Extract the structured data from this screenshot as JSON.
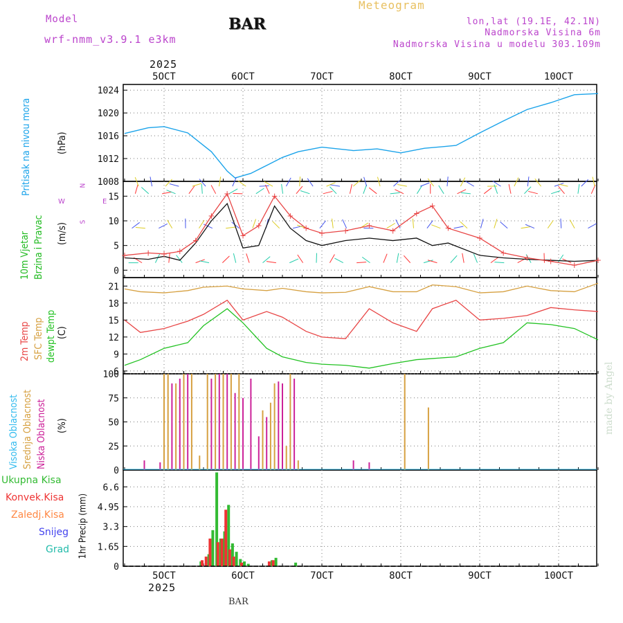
{
  "header": {
    "title": "Meteogram",
    "model_label": "Model",
    "model_name": "wrf-nmm_v3.9.1 e3km",
    "station": "BAR",
    "lonlat": "lon,lat (19.1E, 42.1N)",
    "altitude": "Nadmorska Visina 6m",
    "model_altitude": "Nadmorska Visina u modelu 303.109m",
    "watermark": "made by Angel",
    "footer_station": "BAR"
  },
  "colors": {
    "pressure": "#1aa3ea",
    "temp2m": "#e84545",
    "sfc": "#d6a040",
    "dewpt": "#22c222",
    "high_cloud": "#33bbee",
    "mid_cloud": "#d6a040",
    "low_cloud": "#cc2299",
    "total_precip": "#33bb33",
    "conv_precip": "#ee3333",
    "frozen": "#ff8844",
    "snow": "#4444ee",
    "hail": "#22bbaa",
    "wind_speed_label": "#22bb22",
    "direction_label": "#bb44cc"
  },
  "chart_data": [
    {
      "type": "line",
      "panel": "pressure",
      "ylabel": "Pritisak na nivou mora",
      "unit": "(hPa)",
      "ylim": [
        1008,
        1025
      ],
      "yticks": [
        "1008",
        "1012",
        "1016",
        "1020",
        "1024"
      ],
      "x_top_ticks": [
        "5OCT",
        "6OCT",
        "7OCT",
        "8OCT",
        "9OCT",
        "10OCT"
      ],
      "x_top_year": "2025",
      "x": [
        4.5,
        4.8,
        5.0,
        5.3,
        5.6,
        5.8,
        5.9,
        6.1,
        6.3,
        6.5,
        6.7,
        7.0,
        7.4,
        7.7,
        8.0,
        8.3,
        8.7,
        9.0,
        9.3,
        9.6,
        9.9,
        10.2,
        10.5
      ],
      "series": [
        {
          "name": "SLP",
          "values": [
            1016.4,
            1017.4,
            1017.6,
            1016.5,
            1013.2,
            1009.8,
            1008.6,
            1009.4,
            1010.8,
            1012.2,
            1013.2,
            1014.0,
            1013.4,
            1013.7,
            1013.0,
            1013.8,
            1014.3,
            1016.5,
            1018.6,
            1020.6,
            1021.8,
            1023.2,
            1023.4
          ]
        }
      ]
    },
    {
      "type": "line",
      "panel": "wind",
      "ylabel": "10m Vjetar",
      "ylabel2": "Brzina i Pravac",
      "unit": "(m/s)",
      "direction_legend": [
        "W",
        "S",
        "N",
        "E"
      ],
      "ylim": [
        -1.5,
        18
      ],
      "yticks": [
        "0",
        "5",
        "10",
        "15"
      ],
      "x": [
        4.5,
        4.8,
        5.0,
        5.2,
        5.4,
        5.6,
        5.8,
        6.0,
        6.2,
        6.4,
        6.6,
        6.8,
        7.0,
        7.3,
        7.6,
        7.9,
        8.2,
        8.4,
        8.6,
        9.0,
        9.3,
        9.6,
        9.9,
        10.2,
        10.5
      ],
      "series": [
        {
          "name": "speed",
          "values": [
            2.5,
            2.2,
            2.8,
            2.0,
            5.5,
            10,
            13.5,
            4.5,
            5.0,
            13.0,
            8.5,
            6.0,
            5.0,
            6.0,
            6.5,
            6.0,
            6.5,
            5.0,
            5.5,
            3.0,
            2.5,
            2.2,
            2.0,
            1.8,
            2.0
          ]
        },
        {
          "name": "gust",
          "values": [
            3.0,
            3.5,
            3.3,
            3.8,
            6.0,
            11.0,
            15.5,
            7.0,
            9.0,
            15.0,
            11.0,
            8.5,
            7.5,
            8.0,
            9.0,
            8.0,
            11.5,
            13.0,
            8.5,
            6.5,
            3.5,
            2.5,
            1.8,
            1.0,
            2.0
          ]
        }
      ]
    },
    {
      "type": "line",
      "panel": "temperature",
      "ylabel": "2m Temp",
      "ylabel2": "SFC Temp",
      "ylabel3": "dewpt Temp",
      "unit": "(C)",
      "ylim": [
        5.5,
        22.5
      ],
      "yticks": [
        "6",
        "9",
        "12",
        "15",
        "18",
        "21"
      ],
      "x": [
        4.5,
        4.7,
        5.0,
        5.3,
        5.5,
        5.8,
        6.0,
        6.3,
        6.5,
        6.8,
        7.0,
        7.3,
        7.6,
        7.9,
        8.2,
        8.4,
        8.7,
        9.0,
        9.3,
        9.6,
        9.9,
        10.2,
        10.5
      ],
      "series": [
        {
          "name": "2m",
          "values": [
            15.0,
            12.8,
            13.5,
            14.8,
            16.0,
            18.5,
            15.0,
            16.5,
            15.5,
            13.0,
            12.0,
            11.7,
            17.0,
            14.5,
            13.0,
            17.0,
            18.5,
            15.0,
            15.3,
            15.8,
            17.2,
            16.8,
            16.5
          ]
        },
        {
          "name": "sfc",
          "values": [
            20.5,
            20.0,
            19.8,
            20.2,
            20.8,
            21.0,
            20.5,
            20.2,
            20.6,
            20.0,
            19.8,
            19.9,
            20.9,
            20.0,
            20.0,
            21.2,
            20.9,
            19.8,
            20.0,
            21.0,
            20.2,
            20.0,
            21.5
          ]
        },
        {
          "name": "dewpt",
          "values": [
            7.0,
            8.0,
            10.0,
            11.0,
            14.0,
            17.0,
            14.5,
            10.0,
            8.5,
            7.5,
            7.2,
            7.0,
            6.5,
            7.3,
            8.0,
            8.2,
            8.5,
            10.0,
            11.0,
            14.5,
            14.2,
            13.5,
            11.5
          ]
        }
      ]
    },
    {
      "type": "bar",
      "panel": "clouds",
      "ylabel": "Visoka Oblacnost",
      "ylabel2": "Srednja Oblacnost",
      "ylabel3": "Niska Oblacnost",
      "unit": "(%)",
      "ylim": [
        0,
        100
      ],
      "yticks": [
        "0",
        "25",
        "50",
        "75",
        "100"
      ],
      "series": [
        {
          "name": "mid",
          "x": [
            5.0,
            5.05,
            5.15,
            5.25,
            5.35,
            5.45,
            5.55,
            5.65,
            5.75,
            5.85,
            5.95,
            6.25,
            6.35,
            6.4,
            6.55,
            6.6,
            6.7,
            8.05,
            8.35,
            6.25
          ],
          "values": [
            100,
            100,
            90,
            100,
            100,
            15,
            100,
            100,
            100,
            100,
            100,
            30,
            70,
            90,
            25,
            100,
            10,
            100,
            65,
            62
          ]
        },
        {
          "name": "low",
          "x": [
            4.75,
            4.95,
            5.1,
            5.2,
            5.3,
            5.6,
            5.7,
            5.8,
            5.9,
            6.0,
            6.1,
            6.2,
            6.3,
            6.45,
            6.5,
            6.65,
            7.4,
            7.6
          ],
          "values": [
            10,
            8,
            90,
            95,
            100,
            95,
            100,
            100,
            80,
            75,
            95,
            35,
            55,
            92,
            90,
            95,
            10,
            8
          ]
        }
      ]
    },
    {
      "type": "bar",
      "panel": "precip",
      "ylabel": "1hr Precip (mm)",
      "unit": "(mm)",
      "legend": [
        "Ukupna Kisa",
        "Konvek.Kisa",
        "Zaledj.Kisa",
        "Snijeg",
        "Grad"
      ],
      "ylim": [
        0,
        8
      ],
      "yticks": [
        "0",
        "1.65",
        "3.3",
        "4.95",
        "6.6"
      ],
      "x_bottom_ticks": [
        "5OCT",
        "6OCT",
        "7OCT",
        "8OCT",
        "9OCT",
        "10OCT"
      ],
      "x_bottom_year": "2025",
      "series": [
        {
          "name": "total",
          "x": [
            5.45,
            5.55,
            5.6,
            5.65,
            5.7,
            5.75,
            5.8,
            5.85,
            5.9,
            5.95,
            6.0,
            6.05,
            6.35,
            6.4,
            6.65
          ],
          "values": [
            0.4,
            1.0,
            3.0,
            7.8,
            2.3,
            2.9,
            5.1,
            1.9,
            1.2,
            0.6,
            0.4,
            0.2,
            0.5,
            0.7,
            0.3
          ]
        },
        {
          "name": "conv",
          "x": [
            5.5,
            5.55,
            5.6,
            5.7,
            5.75,
            5.8,
            5.85,
            5.9,
            6.0,
            6.35,
            6.4
          ],
          "values": [
            0.5,
            0.8,
            2.3,
            2.0,
            2.3,
            4.7,
            1.4,
            0.8,
            0.3,
            0.4,
            0.5
          ]
        }
      ]
    }
  ]
}
